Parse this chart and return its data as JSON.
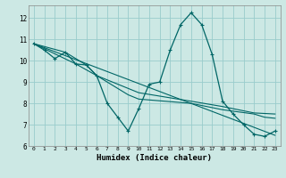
{
  "xlabel": "Humidex (Indice chaleur)",
  "background_color": "#cce8e4",
  "grid_color": "#99cccc",
  "line_color": "#006666",
  "xlim": [
    -0.5,
    23.5
  ],
  "ylim": [
    6.0,
    12.6
  ],
  "yticks": [
    6,
    7,
    8,
    9,
    10,
    11,
    12
  ],
  "xticks": [
    0,
    1,
    2,
    3,
    4,
    5,
    6,
    7,
    8,
    9,
    10,
    11,
    12,
    13,
    14,
    15,
    16,
    17,
    18,
    19,
    20,
    21,
    22,
    23
  ],
  "line1_x": [
    0,
    1,
    2,
    3,
    4,
    5,
    6,
    7,
    8,
    9,
    10,
    11,
    12,
    13,
    14,
    15,
    16,
    17,
    18,
    19,
    20,
    21,
    22,
    23
  ],
  "line1_y": [
    10.8,
    10.5,
    10.1,
    10.4,
    9.85,
    9.8,
    9.3,
    8.0,
    7.35,
    6.7,
    7.75,
    8.9,
    9.0,
    10.5,
    11.7,
    12.25,
    11.7,
    10.3,
    8.1,
    7.5,
    7.0,
    6.55,
    6.45,
    6.7
  ],
  "line2_x": [
    0,
    23
  ],
  "line2_y": [
    10.8,
    6.5
  ],
  "line3_x": [
    0,
    4,
    6,
    9,
    10,
    15,
    18,
    21,
    23
  ],
  "line3_y": [
    10.8,
    9.85,
    9.3,
    8.7,
    8.5,
    8.1,
    7.85,
    7.55,
    7.5
  ],
  "line4_x": [
    0,
    3,
    5,
    6,
    9,
    10,
    15,
    18,
    21,
    22,
    23
  ],
  "line4_y": [
    10.8,
    10.4,
    9.8,
    9.3,
    8.4,
    8.2,
    8.0,
    7.7,
    7.5,
    7.35,
    7.3
  ]
}
